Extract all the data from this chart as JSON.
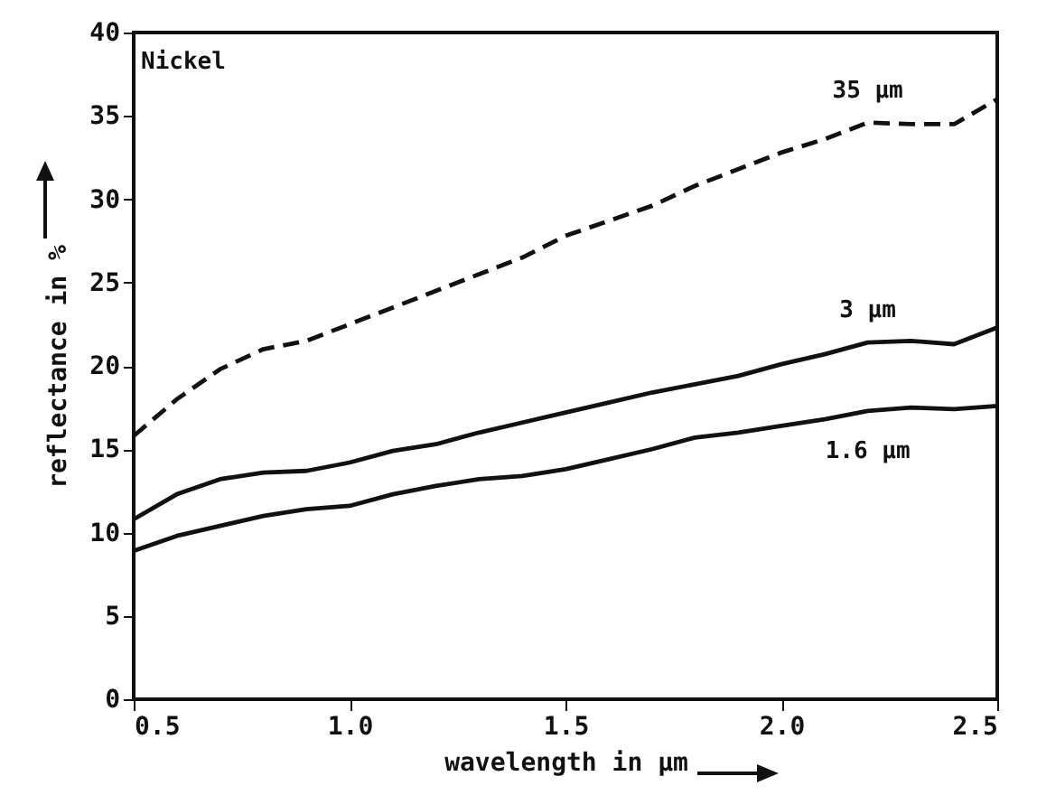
{
  "chart_data": {
    "type": "line",
    "xlabel": "wavelength in µm",
    "ylabel": "reflectance in %",
    "annotations": [
      "Nickel"
    ],
    "x": [
      0.5,
      0.6,
      0.7,
      0.8,
      0.9,
      1.0,
      1.1,
      1.2,
      1.3,
      1.4,
      1.5,
      1.6,
      1.7,
      1.8,
      1.9,
      2.0,
      2.1,
      2.2,
      2.3,
      2.4,
      2.5
    ],
    "series": [
      {
        "name": "35 µm",
        "color": "#111111",
        "line_style": "dashed",
        "values": [
          15.8,
          18,
          19.8,
          21,
          21.5,
          22.5,
          23.5,
          24.5,
          25.5,
          26.5,
          27.8,
          28.7,
          29.6,
          30.8,
          31.8,
          32.8,
          33.6,
          34.6,
          34.5,
          34.5,
          36
        ]
      },
      {
        "name": "3 µm",
        "color": "#111111",
        "line_style": "solid",
        "values": [
          10.8,
          12.3,
          13.2,
          13.6,
          13.7,
          14.2,
          14.9,
          15.3,
          16,
          16.6,
          17.2,
          17.8,
          18.4,
          18.9,
          19.4,
          20.1,
          20.7,
          21.4,
          21.5,
          21.3,
          22.3
        ]
      },
      {
        "name": "1.6 µm",
        "color": "#111111",
        "line_style": "solid",
        "values": [
          8.9,
          9.8,
          10.4,
          11,
          11.4,
          11.6,
          12.3,
          12.8,
          13.2,
          13.4,
          13.8,
          14.4,
          15,
          15.7,
          16,
          16.4,
          16.8,
          17.3,
          17.5,
          17.4,
          17.6
        ]
      }
    ],
    "xlim": [
      0.5,
      2.5
    ],
    "xticks": [
      {
        "value": 0.5,
        "label": "0.5"
      },
      {
        "value": 1.0,
        "label": "1.0"
      },
      {
        "value": 1.5,
        "label": "1.5"
      },
      {
        "value": 2.0,
        "label": "2.0"
      },
      {
        "value": 2.5,
        "label": "2.5"
      }
    ],
    "ylim": [
      0,
      40
    ],
    "yticks": [
      0,
      5,
      10,
      15,
      20,
      25,
      30,
      35,
      40
    ],
    "grid": false,
    "legend": false,
    "marker": "none"
  }
}
